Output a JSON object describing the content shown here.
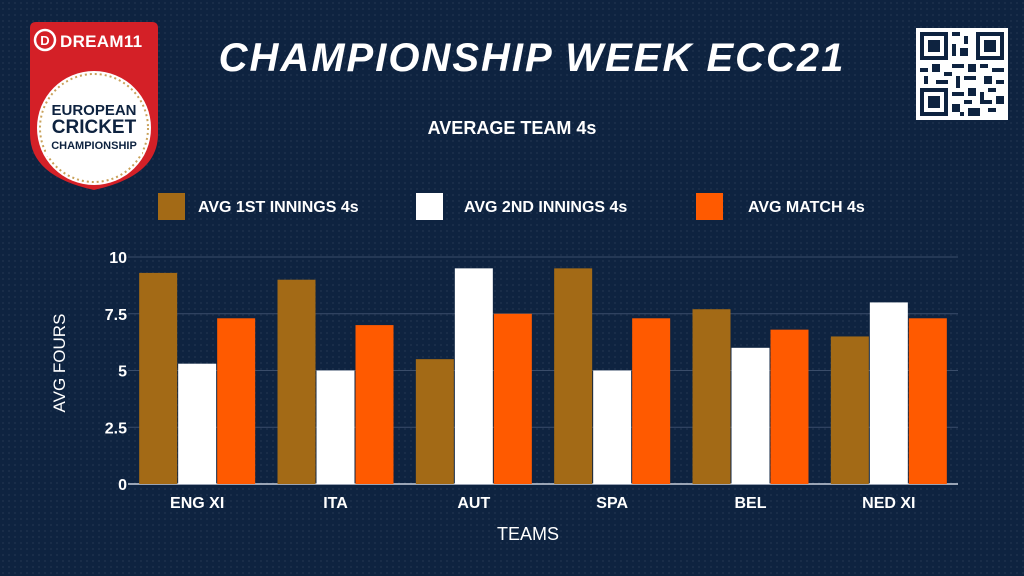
{
  "logo": {
    "brand": "DREAM11",
    "line1": "EUROPEAN",
    "line2": "CRICKET",
    "line3": "CHAMPIONSHIP"
  },
  "title": "CHAMPIONSHIP WEEK ECC21",
  "qr_icon": "qr-code",
  "colors": {
    "background": "#0e2340",
    "first_innings": "#a36a16",
    "second_innings": "#ffffff",
    "match": "#ff5a00",
    "logo_red": "#d42027"
  },
  "chart_data": {
    "type": "bar",
    "title": "AVERAGE TEAM 4s",
    "xlabel": "TEAMS",
    "ylabel": "AVG FOURS",
    "ylim": [
      0,
      10
    ],
    "yticks": [
      0,
      2.5,
      5,
      7.5,
      10
    ],
    "ytick_labels": [
      "0",
      "2.5",
      "5",
      "7.5",
      "10"
    ],
    "grid": true,
    "legend_position": "top",
    "categories": [
      "ENG XI",
      "ITA",
      "AUT",
      "SPA",
      "BEL",
      "NED XI"
    ],
    "series": [
      {
        "name": "AVG 1ST INNINGS 4s",
        "color": "#a36a16",
        "values": [
          9.3,
          9.0,
          5.5,
          9.5,
          7.7,
          6.5
        ]
      },
      {
        "name": "AVG 2ND INNINGS 4s",
        "color": "#ffffff",
        "values": [
          5.3,
          5.0,
          9.5,
          5.0,
          6.0,
          8.0
        ]
      },
      {
        "name": "AVG MATCH 4s",
        "color": "#ff5a00",
        "values": [
          7.3,
          7.0,
          7.5,
          7.3,
          6.8,
          7.3
        ]
      }
    ]
  }
}
